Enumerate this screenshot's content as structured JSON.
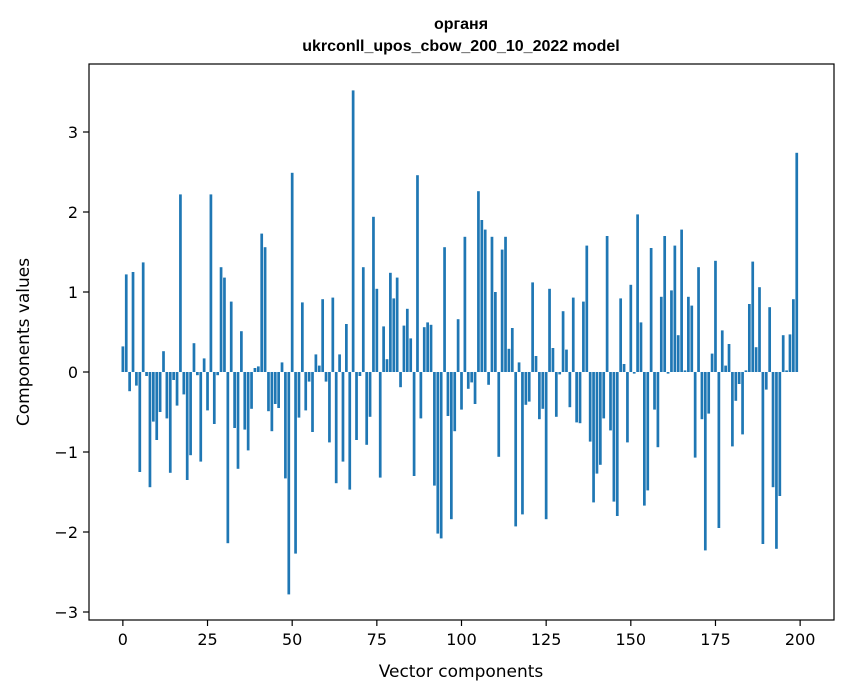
{
  "chart_data": {
    "type": "bar",
    "title": "органя",
    "subtitle": "ukrconll_upos_cbow_200_10_2022 model",
    "xlabel": "Vector components",
    "ylabel": "Components values",
    "xlim": [
      -10,
      210
    ],
    "ylim": [
      -3.1,
      3.85
    ],
    "xticks": [
      0,
      25,
      50,
      75,
      100,
      125,
      150,
      175,
      200
    ],
    "yticks": [
      -3,
      -2,
      -1,
      0,
      1,
      2,
      3
    ],
    "ytick_labels": [
      "−3",
      "−2",
      "−1",
      "0",
      "1",
      "2",
      "3"
    ],
    "grid": false,
    "bar_color": "#1f77b4",
    "values": [
      0.32,
      1.22,
      -0.24,
      1.25,
      -0.17,
      -1.25,
      1.37,
      -0.05,
      -1.44,
      -0.62,
      -0.85,
      -0.5,
      0.26,
      -0.58,
      -1.26,
      -0.1,
      -0.42,
      2.22,
      -0.28,
      -1.35,
      -1.04,
      0.36,
      -0.04,
      -1.12,
      0.17,
      -0.48,
      2.22,
      -0.65,
      -0.04,
      1.31,
      1.18,
      -2.14,
      0.88,
      -0.7,
      -1.21,
      0.51,
      -0.72,
      -0.98,
      -0.46,
      0.05,
      0.07,
      1.73,
      1.56,
      -0.49,
      -0.74,
      -0.4,
      -0.45,
      0.12,
      -1.33,
      -2.78,
      2.49,
      -2.27,
      -0.57,
      0.87,
      -0.48,
      -0.12,
      -0.75,
      0.22,
      0.08,
      0.91,
      -0.12,
      -0.88,
      0.93,
      -1.39,
      0.22,
      -1.12,
      0.6,
      -1.47,
      3.52,
      -0.85,
      -0.05,
      1.31,
      -0.91,
      -0.56,
      1.94,
      1.04,
      -1.32,
      0.57,
      0.16,
      1.24,
      0.92,
      1.18,
      -0.19,
      0.58,
      0.79,
      0.42,
      -1.3,
      2.46,
      -0.58,
      0.56,
      0.62,
      0.59,
      -1.42,
      -2.02,
      -2.08,
      1.56,
      -0.55,
      -1.84,
      -0.74,
      0.66,
      -0.47,
      1.69,
      -0.21,
      -0.13,
      -0.4,
      2.26,
      1.9,
      1.78,
      -0.16,
      1.69,
      1.0,
      -1.06,
      1.53,
      1.69,
      0.29,
      0.55,
      -1.93,
      0.12,
      -1.78,
      -0.41,
      -0.37,
      1.12,
      0.2,
      -0.59,
      -0.46,
      -1.84,
      1.04,
      0.3,
      -0.56,
      -0.03,
      0.76,
      0.28,
      -0.44,
      0.93,
      -0.63,
      -0.64,
      0.88,
      1.58,
      -0.87,
      -1.63,
      -1.27,
      -1.16,
      -0.58,
      1.7,
      -0.73,
      -1.62,
      -1.8,
      0.92,
      0.1,
      -0.88,
      1.09,
      -0.02,
      1.97,
      0.62,
      -1.67,
      -1.48,
      1.55,
      -0.47,
      -0.94,
      0.94,
      1.7,
      -0.02,
      1.02,
      1.58,
      0.46,
      1.78,
      0.02,
      0.94,
      0.83,
      -1.07,
      1.31,
      -0.59,
      -2.23,
      -0.52,
      0.23,
      1.39,
      -1.95,
      0.52,
      0.08,
      0.35,
      -0.93,
      -0.36,
      -0.15,
      -0.78,
      0.02,
      0.85,
      1.38,
      0.31,
      1.06,
      -2.15,
      -0.22,
      0.81,
      -1.44,
      -2.21,
      -1.55,
      0.46,
      0.02,
      0.47,
      0.91,
      2.74
    ]
  }
}
